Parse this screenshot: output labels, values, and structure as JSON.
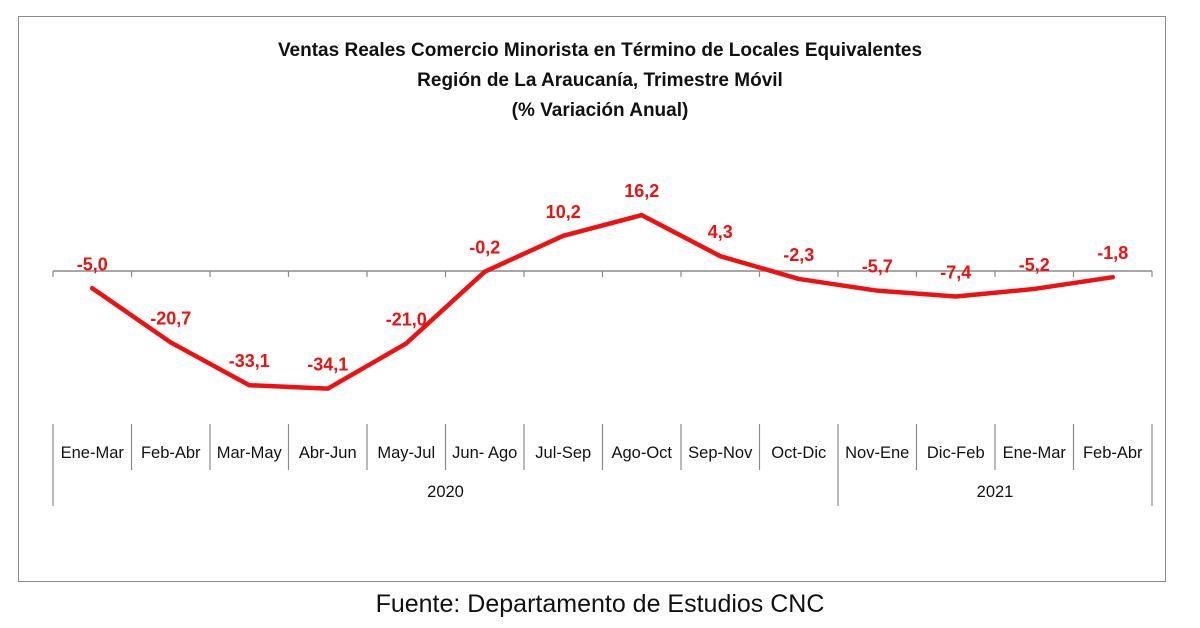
{
  "chart_data": {
    "type": "line",
    "title": [
      "Ventas Reales Comercio Minorista  en Término de Locales Equivalentes",
      "Región de La Araucanía, Trimestre Móvil",
      "(% Variación Anual)"
    ],
    "categories": [
      "Ene-Mar",
      "Feb-Abr",
      "Mar-May",
      "Abr-Jun",
      "May-Jul",
      "Jun- Ago",
      "Jul-Sep",
      "Ago-Oct",
      "Sep-Nov",
      "Oct-Dic",
      "Nov-Ene",
      "Dic-Feb",
      "Ene-Mar",
      "Feb-Abr"
    ],
    "groups": [
      {
        "label": "2020",
        "count": 10
      },
      {
        "label": "2021",
        "count": 4
      }
    ],
    "series": [
      {
        "values": [
          -5.0,
          -20.7,
          -33.1,
          -34.1,
          -21.0,
          -0.2,
          10.2,
          16.2,
          4.3,
          -2.3,
          -5.7,
          -7.4,
          -5.2,
          -1.8
        ],
        "data_labels": [
          "-5,0",
          "-20,7",
          "-33,1",
          "-34,1",
          "-21,0",
          "-0,2",
          "10,2",
          "16,2",
          "4,3",
          "-2,3",
          "-5,7",
          "-7,4",
          "-5,2",
          "-1,8"
        ],
        "color": "#ee1111"
      }
    ],
    "axis_color": "#8a8a8a",
    "grid": false,
    "legend": "none"
  },
  "footer": {
    "source": "Fuente: Departamento de Estudios CNC"
  }
}
